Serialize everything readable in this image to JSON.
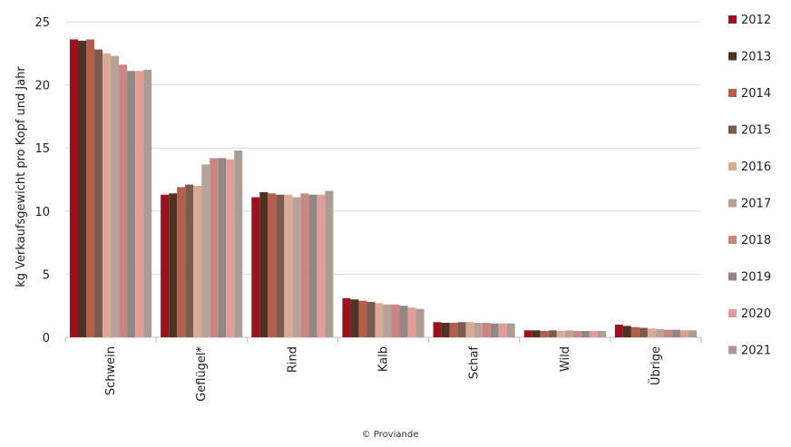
{
  "chart_data": {
    "type": "bar",
    "ylabel": "kg Verkaufsgewicht pro Kopf und Jahr",
    "ylim": [
      0,
      25
    ],
    "yticks": [
      0,
      5,
      10,
      15,
      20,
      25
    ],
    "grid": true,
    "legend_position": "right",
    "categories": [
      "Schwein",
      "Geflügel*",
      "Rind",
      "Kalb",
      "Schaf",
      "Wild",
      "Übrige"
    ],
    "series": [
      {
        "name": "2012",
        "color": "#9b111e",
        "values": [
          23.6,
          11.3,
          11.1,
          3.1,
          1.2,
          0.55,
          1.0
        ]
      },
      {
        "name": "2013",
        "color": "#4e3323",
        "values": [
          23.5,
          11.4,
          11.5,
          3.0,
          1.15,
          0.55,
          0.9
        ]
      },
      {
        "name": "2014",
        "color": "#b45e4c",
        "values": [
          23.6,
          11.9,
          11.4,
          2.9,
          1.15,
          0.5,
          0.8
        ]
      },
      {
        "name": "2015",
        "color": "#7a5c4e",
        "values": [
          22.8,
          12.1,
          11.3,
          2.8,
          1.2,
          0.55,
          0.75
        ]
      },
      {
        "name": "2016",
        "color": "#d9ab97",
        "values": [
          22.5,
          12.0,
          11.3,
          2.7,
          1.2,
          0.5,
          0.7
        ]
      },
      {
        "name": "2017",
        "color": "#b8a398",
        "values": [
          22.3,
          13.7,
          11.1,
          2.6,
          1.15,
          0.55,
          0.65
        ]
      },
      {
        "name": "2018",
        "color": "#c98682",
        "values": [
          21.6,
          14.2,
          11.4,
          2.6,
          1.15,
          0.5,
          0.6
        ]
      },
      {
        "name": "2019",
        "color": "#938786",
        "values": [
          21.1,
          14.2,
          11.3,
          2.5,
          1.1,
          0.5,
          0.6
        ]
      },
      {
        "name": "2020",
        "color": "#e29d98",
        "values": [
          21.1,
          14.1,
          11.3,
          2.35,
          1.1,
          0.5,
          0.55
        ]
      },
      {
        "name": "2021",
        "color": "#ab9c94",
        "values": [
          21.2,
          14.8,
          11.6,
          2.25,
          1.1,
          0.5,
          0.55
        ]
      }
    ]
  },
  "footer": "© Proviande"
}
